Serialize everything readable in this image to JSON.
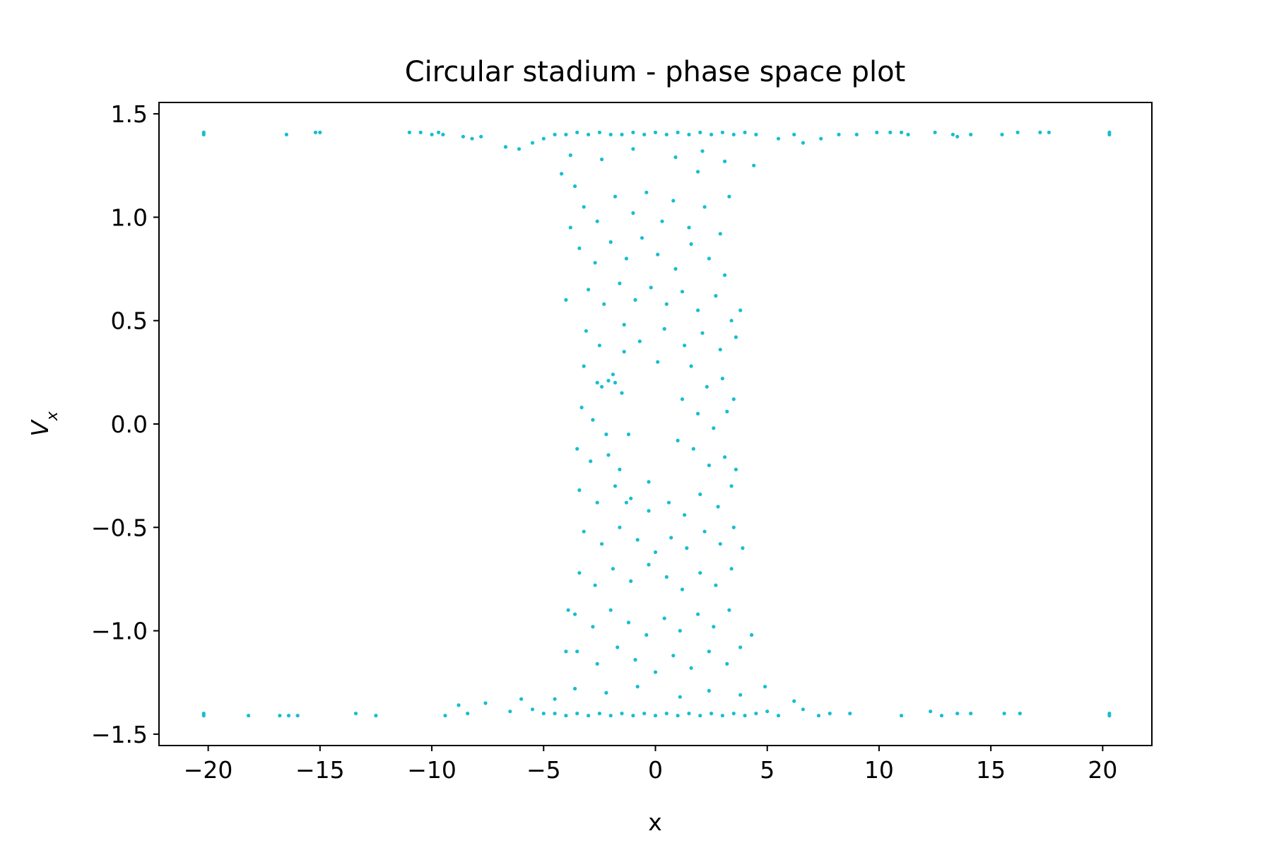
{
  "chart_data": {
    "type": "scatter",
    "title": "Circular stadium - phase space plot",
    "xlabel": "x",
    "ylabel": "V",
    "ylabel_subscript": "x",
    "xlim": [
      -22.2,
      22.2
    ],
    "ylim": [
      -1.555,
      1.555
    ],
    "xticks": [
      -20,
      -15,
      -10,
      -5,
      0,
      5,
      10,
      15,
      20
    ],
    "xtick_labels": [
      "−20",
      "−15",
      "−10",
      "−5",
      "0",
      "5",
      "10",
      "15",
      "20"
    ],
    "yticks": [
      1.5,
      1.0,
      0.5,
      0.0,
      -0.5,
      -1.0,
      -1.5
    ],
    "ytick_labels": [
      "1.5",
      "1.0",
      "0.5",
      "0.0",
      "−0.5",
      "−1.0",
      "−1.5"
    ],
    "grid": false,
    "legend": "none",
    "point_color": "#17becf",
    "series": [
      {
        "points": [
          [
            -20.2,
            1.4
          ],
          [
            -20.2,
            1.41
          ],
          [
            -16.5,
            1.4
          ],
          [
            -15.2,
            1.41
          ],
          [
            -15.0,
            1.41
          ],
          [
            -11.0,
            1.41
          ],
          [
            -10.5,
            1.41
          ],
          [
            -10.0,
            1.4
          ],
          [
            -9.7,
            1.41
          ],
          [
            -9.5,
            1.4
          ],
          [
            -8.6,
            1.39
          ],
          [
            -8.2,
            1.38
          ],
          [
            -7.8,
            1.39
          ],
          [
            -6.7,
            1.34
          ],
          [
            -6.1,
            1.33
          ],
          [
            -5.5,
            1.36
          ],
          [
            -5.0,
            1.38
          ],
          [
            -4.5,
            1.4
          ],
          [
            -4.0,
            1.4
          ],
          [
            -3.5,
            1.41
          ],
          [
            -3.0,
            1.4
          ],
          [
            -2.5,
            1.41
          ],
          [
            -2.0,
            1.4
          ],
          [
            -1.5,
            1.4
          ],
          [
            -1.0,
            1.41
          ],
          [
            -0.5,
            1.4
          ],
          [
            0.0,
            1.41
          ],
          [
            0.5,
            1.4
          ],
          [
            1.0,
            1.41
          ],
          [
            1.5,
            1.4
          ],
          [
            2.0,
            1.41
          ],
          [
            2.5,
            1.4
          ],
          [
            3.0,
            1.41
          ],
          [
            3.5,
            1.4
          ],
          [
            4.0,
            1.41
          ],
          [
            4.5,
            1.4
          ],
          [
            5.5,
            1.38
          ],
          [
            6.2,
            1.4
          ],
          [
            6.6,
            1.36
          ],
          [
            7.4,
            1.38
          ],
          [
            8.2,
            1.4
          ],
          [
            9.0,
            1.4
          ],
          [
            9.9,
            1.41
          ],
          [
            10.5,
            1.41
          ],
          [
            11.0,
            1.41
          ],
          [
            11.3,
            1.4
          ],
          [
            12.5,
            1.41
          ],
          [
            13.3,
            1.4
          ],
          [
            13.5,
            1.39
          ],
          [
            14.1,
            1.4
          ],
          [
            15.5,
            1.4
          ],
          [
            16.2,
            1.41
          ],
          [
            17.2,
            1.41
          ],
          [
            17.6,
            1.41
          ],
          [
            20.3,
            1.4
          ],
          [
            20.3,
            1.41
          ],
          [
            -3.8,
            1.3
          ],
          [
            -2.4,
            1.28
          ],
          [
            -1.0,
            1.33
          ],
          [
            0.9,
            1.29
          ],
          [
            2.1,
            1.32
          ],
          [
            3.1,
            1.27
          ],
          [
            4.4,
            1.25
          ],
          [
            -4.2,
            1.21
          ],
          [
            1.9,
            1.22
          ],
          [
            -20.2,
            -1.4
          ],
          [
            -20.2,
            -1.41
          ],
          [
            -18.2,
            -1.41
          ],
          [
            -16.8,
            -1.41
          ],
          [
            -16.4,
            -1.41
          ],
          [
            -16.0,
            -1.41
          ],
          [
            -13.4,
            -1.4
          ],
          [
            -12.5,
            -1.41
          ],
          [
            -9.4,
            -1.41
          ],
          [
            -8.4,
            -1.4
          ],
          [
            -8.8,
            -1.36
          ],
          [
            -7.6,
            -1.35
          ],
          [
            -6.5,
            -1.39
          ],
          [
            -6.0,
            -1.33
          ],
          [
            -5.5,
            -1.38
          ],
          [
            -5.0,
            -1.4
          ],
          [
            -4.5,
            -1.4
          ],
          [
            -4.0,
            -1.41
          ],
          [
            -3.5,
            -1.4
          ],
          [
            -3.0,
            -1.41
          ],
          [
            -2.5,
            -1.4
          ],
          [
            -2.0,
            -1.41
          ],
          [
            -1.5,
            -1.4
          ],
          [
            -1.0,
            -1.41
          ],
          [
            -0.5,
            -1.4
          ],
          [
            0.0,
            -1.41
          ],
          [
            0.5,
            -1.4
          ],
          [
            1.0,
            -1.41
          ],
          [
            1.5,
            -1.4
          ],
          [
            2.0,
            -1.41
          ],
          [
            2.5,
            -1.4
          ],
          [
            3.0,
            -1.41
          ],
          [
            3.5,
            -1.4
          ],
          [
            4.0,
            -1.41
          ],
          [
            4.5,
            -1.4
          ],
          [
            5.0,
            -1.39
          ],
          [
            5.5,
            -1.41
          ],
          [
            6.6,
            -1.38
          ],
          [
            7.3,
            -1.41
          ],
          [
            7.8,
            -1.4
          ],
          [
            8.7,
            -1.4
          ],
          [
            11.0,
            -1.41
          ],
          [
            12.3,
            -1.39
          ],
          [
            12.8,
            -1.41
          ],
          [
            13.5,
            -1.4
          ],
          [
            14.1,
            -1.4
          ],
          [
            15.6,
            -1.4
          ],
          [
            16.3,
            -1.4
          ],
          [
            20.3,
            -1.4
          ],
          [
            20.3,
            -1.41
          ],
          [
            -3.6,
            -1.28
          ],
          [
            -2.2,
            -1.3
          ],
          [
            -0.8,
            -1.27
          ],
          [
            1.1,
            -1.32
          ],
          [
            2.4,
            -1.29
          ],
          [
            3.8,
            -1.31
          ],
          [
            4.9,
            -1.27
          ],
          [
            -4.5,
            -1.33
          ],
          [
            6.2,
            -1.34
          ],
          [
            -3.6,
            1.15
          ],
          [
            -3.2,
            1.05
          ],
          [
            -2.6,
            0.98
          ],
          [
            -1.8,
            1.1
          ],
          [
            -1.0,
            1.02
          ],
          [
            -0.4,
            1.12
          ],
          [
            0.3,
            0.98
          ],
          [
            0.8,
            1.08
          ],
          [
            1.5,
            0.95
          ],
          [
            2.2,
            1.05
          ],
          [
            2.9,
            0.92
          ],
          [
            3.3,
            1.1
          ],
          [
            -3.4,
            0.85
          ],
          [
            -2.7,
            0.78
          ],
          [
            -2.0,
            0.88
          ],
          [
            -1.3,
            0.8
          ],
          [
            -0.6,
            0.9
          ],
          [
            0.1,
            0.82
          ],
          [
            0.9,
            0.75
          ],
          [
            1.6,
            0.87
          ],
          [
            2.4,
            0.8
          ],
          [
            3.1,
            0.72
          ],
          [
            -3.0,
            0.65
          ],
          [
            -2.3,
            0.58
          ],
          [
            -1.6,
            0.68
          ],
          [
            -0.9,
            0.6
          ],
          [
            -0.2,
            0.66
          ],
          [
            0.5,
            0.58
          ],
          [
            1.2,
            0.64
          ],
          [
            1.9,
            0.55
          ],
          [
            2.7,
            0.62
          ],
          [
            3.4,
            0.5
          ],
          [
            -3.1,
            0.45
          ],
          [
            -2.5,
            0.38
          ],
          [
            -1.4,
            0.48
          ],
          [
            -0.7,
            0.4
          ],
          [
            0.4,
            0.46
          ],
          [
            1.3,
            0.38
          ],
          [
            2.1,
            0.44
          ],
          [
            2.9,
            0.36
          ],
          [
            3.6,
            0.42
          ],
          [
            -3.2,
            0.28
          ],
          [
            -2.6,
            0.2
          ],
          [
            -1.9,
            0.24
          ],
          [
            -1.5,
            0.15
          ],
          [
            1.6,
            0.28
          ],
          [
            2.3,
            0.18
          ],
          [
            3.0,
            0.22
          ],
          [
            3.5,
            0.12
          ],
          [
            -3.3,
            0.08
          ],
          [
            -2.8,
            0.02
          ],
          [
            -2.2,
            -0.05
          ],
          [
            1.9,
            0.05
          ],
          [
            2.6,
            -0.02
          ],
          [
            3.2,
            0.06
          ],
          [
            -3.5,
            -0.12
          ],
          [
            -2.9,
            -0.18
          ],
          [
            -2.1,
            -0.15
          ],
          [
            -1.6,
            -0.22
          ],
          [
            1.7,
            -0.12
          ],
          [
            2.4,
            -0.2
          ],
          [
            3.1,
            -0.16
          ],
          [
            3.6,
            -0.22
          ],
          [
            -3.4,
            -0.32
          ],
          [
            -2.6,
            -0.38
          ],
          [
            -1.8,
            -0.3
          ],
          [
            -1.1,
            -0.36
          ],
          [
            -0.3,
            -0.42
          ],
          [
            0.6,
            -0.38
          ],
          [
            1.3,
            -0.44
          ],
          [
            2.0,
            -0.34
          ],
          [
            2.8,
            -0.4
          ],
          [
            3.4,
            -0.3
          ],
          [
            -3.2,
            -0.52
          ],
          [
            -2.4,
            -0.58
          ],
          [
            -1.6,
            -0.5
          ],
          [
            -0.8,
            -0.56
          ],
          [
            0.0,
            -0.62
          ],
          [
            0.7,
            -0.55
          ],
          [
            1.4,
            -0.6
          ],
          [
            2.2,
            -0.52
          ],
          [
            2.9,
            -0.58
          ],
          [
            3.5,
            -0.5
          ],
          [
            -3.4,
            -0.72
          ],
          [
            -2.7,
            -0.78
          ],
          [
            -1.9,
            -0.7
          ],
          [
            -1.1,
            -0.76
          ],
          [
            -0.3,
            -0.68
          ],
          [
            0.5,
            -0.74
          ],
          [
            1.2,
            -0.8
          ],
          [
            2.0,
            -0.72
          ],
          [
            2.7,
            -0.78
          ],
          [
            3.4,
            -0.7
          ],
          [
            -3.6,
            -0.92
          ],
          [
            -2.8,
            -0.98
          ],
          [
            -2.0,
            -0.9
          ],
          [
            -1.2,
            -0.96
          ],
          [
            -0.4,
            -1.02
          ],
          [
            0.4,
            -0.94
          ],
          [
            1.1,
            -1.0
          ],
          [
            1.9,
            -0.92
          ],
          [
            2.6,
            -0.98
          ],
          [
            3.3,
            -0.9
          ],
          [
            4.3,
            -1.02
          ],
          [
            -3.5,
            -1.1
          ],
          [
            -2.6,
            -1.16
          ],
          [
            -1.7,
            -1.08
          ],
          [
            -0.9,
            -1.14
          ],
          [
            0.0,
            -1.2
          ],
          [
            0.8,
            -1.12
          ],
          [
            1.6,
            -1.18
          ],
          [
            2.4,
            -1.1
          ],
          [
            3.2,
            -1.16
          ],
          [
            3.8,
            -1.08
          ],
          [
            -3.9,
            -0.9
          ],
          [
            -4.0,
            -1.1
          ],
          [
            -3.8,
            0.95
          ],
          [
            -4.0,
            0.6
          ],
          [
            3.8,
            0.55
          ],
          [
            3.9,
            -0.6
          ],
          [
            -2.4,
            0.18
          ],
          [
            -2.1,
            0.21
          ],
          [
            -1.8,
            0.2
          ],
          [
            1.2,
            0.12
          ],
          [
            1.0,
            -0.08
          ],
          [
            -1.2,
            -0.05
          ],
          [
            -1.4,
            0.35
          ],
          [
            -1.3,
            -0.38
          ],
          [
            0.1,
            0.3
          ],
          [
            -0.3,
            -0.28
          ]
        ]
      }
    ]
  }
}
